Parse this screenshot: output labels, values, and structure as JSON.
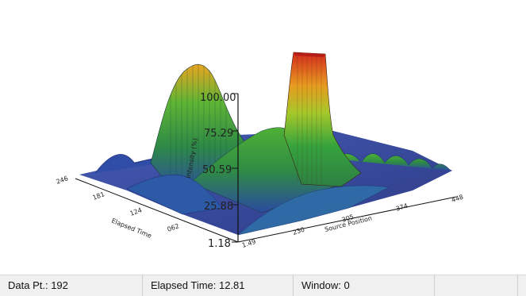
{
  "status_bar": {
    "data_point": "Data Pt.: 192",
    "elapsed_time": "Elapsed Time: 12.81",
    "window": "Window: 0",
    "extra_1": "",
    "extra_2": ""
  },
  "colors": {
    "low": "#2c3a94",
    "mid_low": "#2e8c4a",
    "mid": "#31a33f",
    "mid_high": "#c9c92a",
    "high": "#e23b22"
  },
  "chart_data": {
    "type": "surface",
    "z_axis": {
      "label": "Intensity (%)",
      "ticks": [
        "100.00",
        "75.29",
        "50.59",
        "25.88",
        "1.18"
      ]
    },
    "y_axis": {
      "label": "Elapsed Time",
      "ticks": [
        "246",
        "181",
        "124",
        "062",
        "1.16"
      ]
    },
    "x_axis": {
      "label": "Source Position",
      "ticks": [
        "1.49",
        "230",
        "305",
        "374",
        "448"
      ]
    }
  }
}
